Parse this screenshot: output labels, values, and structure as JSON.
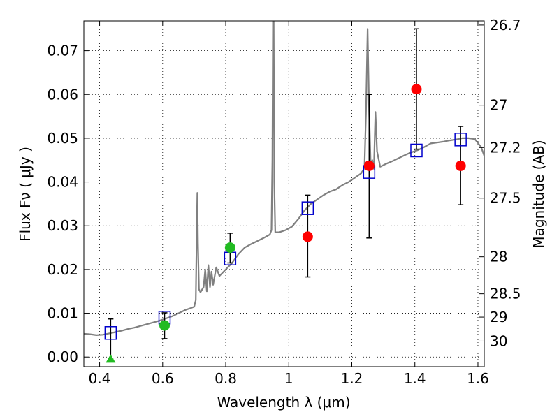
{
  "chart_data": {
    "type": "scatter",
    "xlabel": "Wavelength  λ (μm)",
    "ylabel_left": "Flux  Fν  ( μJy )",
    "ylabel_right": "Magnitude (AB)",
    "xlim": [
      0.35,
      1.62
    ],
    "ylim": [
      -0.0022,
      0.0768
    ],
    "grid": true,
    "x_ticks": [
      {
        "value": 0.4,
        "label": "0.4"
      },
      {
        "value": 0.6,
        "label": "0.6"
      },
      {
        "value": 0.8,
        "label": "0.8"
      },
      {
        "value": 1.0,
        "label": "1"
      },
      {
        "value": 1.2,
        "label": "1.2"
      },
      {
        "value": 1.4,
        "label": "1.4"
      },
      {
        "value": 1.6,
        "label": "1.6"
      }
    ],
    "y_ticks": [
      {
        "value": 0.0,
        "label": "0.00"
      },
      {
        "value": 0.01,
        "label": "0.01"
      },
      {
        "value": 0.02,
        "label": "0.02"
      },
      {
        "value": 0.03,
        "label": "0.03"
      },
      {
        "value": 0.04,
        "label": "0.04"
      },
      {
        "value": 0.05,
        "label": "0.05"
      },
      {
        "value": 0.06,
        "label": "0.06"
      },
      {
        "value": 0.07,
        "label": "0.07"
      }
    ],
    "mag_ticks": [
      {
        "value": 26.7,
        "label": "26.7"
      },
      {
        "value": 27.0,
        "label": "27"
      },
      {
        "value": 27.2,
        "label": "27.2"
      },
      {
        "value": 27.5,
        "label": "27.5"
      },
      {
        "value": 28.0,
        "label": "28"
      },
      {
        "value": 28.5,
        "label": "28.5"
      },
      {
        "value": 29.0,
        "label": "29"
      },
      {
        "value": 30.0,
        "label": "30"
      }
    ],
    "model_spectrum": {
      "color": "#808080",
      "points": [
        [
          0.35,
          0.0053
        ],
        [
          0.37,
          0.0052
        ],
        [
          0.39,
          0.005
        ],
        [
          0.41,
          0.0051
        ],
        [
          0.43,
          0.0054
        ],
        [
          0.45,
          0.0057
        ],
        [
          0.47,
          0.006
        ],
        [
          0.49,
          0.0064
        ],
        [
          0.51,
          0.0067
        ],
        [
          0.53,
          0.0071
        ],
        [
          0.55,
          0.0075
        ],
        [
          0.57,
          0.0079
        ],
        [
          0.59,
          0.0083
        ],
        [
          0.61,
          0.0088
        ],
        [
          0.63,
          0.0093
        ],
        [
          0.65,
          0.01
        ],
        [
          0.67,
          0.0107
        ],
        [
          0.69,
          0.0112
        ],
        [
          0.7,
          0.0115
        ],
        [
          0.705,
          0.013
        ],
        [
          0.708,
          0.028
        ],
        [
          0.71,
          0.0375
        ],
        [
          0.712,
          0.026
        ],
        [
          0.715,
          0.0155
        ],
        [
          0.72,
          0.0148
        ],
        [
          0.73,
          0.016
        ],
        [
          0.735,
          0.02
        ],
        [
          0.74,
          0.015
        ],
        [
          0.745,
          0.021
        ],
        [
          0.75,
          0.016
        ],
        [
          0.755,
          0.0195
        ],
        [
          0.76,
          0.0165
        ],
        [
          0.77,
          0.0205
        ],
        [
          0.78,
          0.0185
        ],
        [
          0.8,
          0.02
        ],
        [
          0.82,
          0.0215
        ],
        [
          0.84,
          0.0235
        ],
        [
          0.86,
          0.025
        ],
        [
          0.88,
          0.0258
        ],
        [
          0.9,
          0.0265
        ],
        [
          0.92,
          0.0272
        ],
        [
          0.94,
          0.028
        ],
        [
          0.945,
          0.029
        ],
        [
          0.948,
          0.045
        ],
        [
          0.95,
          0.079
        ],
        [
          0.952,
          0.079
        ],
        [
          0.954,
          0.04
        ],
        [
          0.957,
          0.0285
        ],
        [
          0.97,
          0.0285
        ],
        [
          0.99,
          0.029
        ],
        [
          1.01,
          0.0298
        ],
        [
          1.03,
          0.0315
        ],
        [
          1.05,
          0.0335
        ],
        [
          1.07,
          0.035
        ],
        [
          1.09,
          0.036
        ],
        [
          1.11,
          0.037
        ],
        [
          1.13,
          0.0378
        ],
        [
          1.15,
          0.0383
        ],
        [
          1.17,
          0.0393
        ],
        [
          1.19,
          0.04
        ],
        [
          1.21,
          0.041
        ],
        [
          1.23,
          0.042
        ],
        [
          1.24,
          0.0432
        ],
        [
          1.245,
          0.056
        ],
        [
          1.25,
          0.075
        ],
        [
          1.255,
          0.056
        ],
        [
          1.26,
          0.0432
        ],
        [
          1.265,
          0.045
        ],
        [
          1.27,
          0.043
        ],
        [
          1.275,
          0.056
        ],
        [
          1.28,
          0.047
        ],
        [
          1.29,
          0.0435
        ],
        [
          1.31,
          0.0442
        ],
        [
          1.33,
          0.0448
        ],
        [
          1.35,
          0.0455
        ],
        [
          1.37,
          0.0462
        ],
        [
          1.39,
          0.0468
        ],
        [
          1.41,
          0.0473
        ],
        [
          1.43,
          0.048
        ],
        [
          1.45,
          0.0488
        ],
        [
          1.47,
          0.049
        ],
        [
          1.49,
          0.0492
        ],
        [
          1.51,
          0.0495
        ],
        [
          1.53,
          0.0497
        ],
        [
          1.55,
          0.05
        ],
        [
          1.57,
          0.05
        ],
        [
          1.59,
          0.0498
        ],
        [
          1.61,
          0.048
        ],
        [
          1.62,
          0.046
        ]
      ]
    },
    "model_photometry": {
      "marker": "open-square",
      "color": "#0000cc",
      "points": [
        [
          0.435,
          0.0055
        ],
        [
          0.606,
          0.009
        ],
        [
          0.814,
          0.0225
        ],
        [
          1.06,
          0.034
        ],
        [
          1.255,
          0.0423
        ],
        [
          1.405,
          0.0472
        ],
        [
          1.545,
          0.0497
        ]
      ]
    },
    "observed_detections_optical": {
      "marker": "circle",
      "color": "#22bb22",
      "points": [
        {
          "x": 0.606,
          "y": 0.0072,
          "err_low": 0.0042,
          "err_high": 0.0101
        },
        {
          "x": 0.814,
          "y": 0.025,
          "err_low": 0.0215,
          "err_high": 0.0283
        }
      ]
    },
    "observed_upper_limit": {
      "marker": "triangle",
      "color": "#22bb22",
      "points": [
        {
          "x": 0.435,
          "y": -0.0005,
          "err_low": -0.0005,
          "err_high": 0.0087
        }
      ]
    },
    "observed_detections_ir": {
      "marker": "circle",
      "color": "#ff0000",
      "points": [
        {
          "x": 1.06,
          "y": 0.0275,
          "err_low": 0.0183,
          "err_high": 0.037
        },
        {
          "x": 1.255,
          "y": 0.0437,
          "err_low": 0.0272,
          "err_high": 0.06
        },
        {
          "x": 1.405,
          "y": 0.0612,
          "err_low": 0.0475,
          "err_high": 0.075
        },
        {
          "x": 1.545,
          "y": 0.0437,
          "err_low": 0.0348,
          "err_high": 0.0527
        }
      ]
    }
  }
}
